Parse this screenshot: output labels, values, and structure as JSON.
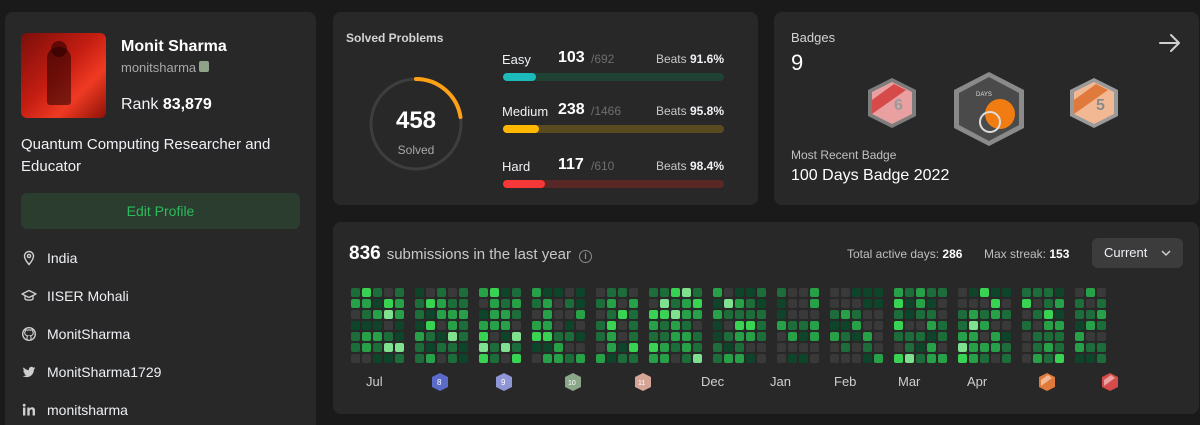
{
  "profile": {
    "name": "Monit Sharma",
    "username": "monitsharma",
    "rank_label": "Rank",
    "rank_value": "83,879",
    "bio": "Quantum Computing Researcher and Educator",
    "edit_button": "Edit Profile",
    "location": "India",
    "school": "IISER Mohali",
    "github": "MonitSharma",
    "twitter": "MonitSharma1729",
    "linkedin": "monitsharma"
  },
  "solved": {
    "title": "Solved Problems",
    "total": "458",
    "total_label": "Solved",
    "difficulties": [
      {
        "name": "Easy",
        "count": "103",
        "total": "/692",
        "beats_label": "Beats",
        "beats": "91.6%",
        "fraction": 0.149,
        "color": "#1cbaba",
        "track": "#1f4235"
      },
      {
        "name": "Medium",
        "count": "238",
        "total": "/1466",
        "beats_label": "Beats",
        "beats": "95.8%",
        "fraction": 0.162,
        "color": "#ffb700",
        "track": "#5a4a1f"
      },
      {
        "name": "Hard",
        "count": "117",
        "total": "/610",
        "beats_label": "Beats",
        "beats": "98.4%",
        "fraction": 0.192,
        "color": "#f63737",
        "track": "#5a2727"
      }
    ]
  },
  "badges": {
    "label": "Badges",
    "count": "9",
    "recent_label": "Most Recent Badge",
    "recent_name": "100 Days Badge 2022",
    "icons": [
      "6-month-badge-icon",
      "100-days-badge-icon",
      "5-month-badge-icon"
    ]
  },
  "calendar": {
    "submissions_count": "836",
    "submissions_text": "submissions in the last year",
    "active_days_label": "Total active days:",
    "active_days": "286",
    "max_streak_label": "Max streak:",
    "max_streak": "153",
    "current_button": "Current",
    "months": [
      "Jul",
      "Dec",
      "Jan",
      "Feb",
      "Mar",
      "Apr"
    ],
    "month_badges": [
      "8-month-badge-icon",
      "9-month-badge-icon",
      "10-month-badge-icon",
      "11-month-badge-icon",
      "12-month-badge-icon",
      "annual-badge-icon"
    ]
  },
  "colors": {
    "background": "#1a1a1a",
    "card": "#282828",
    "accent_green": "#2cbb5d",
    "easy": "#1cbaba",
    "medium": "#ffb700",
    "hard": "#f63737"
  }
}
